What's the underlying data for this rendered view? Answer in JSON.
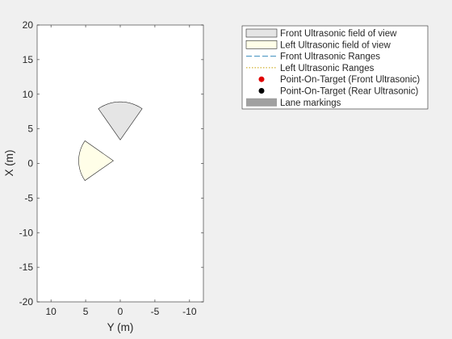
{
  "chart_data": {
    "type": "scatter",
    "title": "",
    "xlabel": "Y (m)",
    "ylabel": "X (m)",
    "xlim": [
      12,
      -12
    ],
    "ylim": [
      -20,
      20
    ],
    "x_reversed": true,
    "grid": false,
    "legend_placement": "outside-top-right",
    "x_ticks": [
      "10",
      "5",
      "0",
      "-5",
      "-10"
    ],
    "x_tick_values": [
      10,
      5,
      0,
      -5,
      -10
    ],
    "y_ticks": [
      "-20",
      "-15",
      "-10",
      "-5",
      "0",
      "5",
      "10",
      "15",
      "20"
    ],
    "y_tick_values": [
      -20,
      -15,
      -10,
      -5,
      0,
      5,
      10,
      15,
      20
    ],
    "fields_of_view": [
      {
        "name": "Front Ultrasonic field of view",
        "origin_x": 3.4,
        "origin_y": 0,
        "center_angle_deg": 0,
        "half_angle_deg": 35,
        "range": 5.5,
        "fill": "#e5e5e5"
      },
      {
        "name": "Left Ultrasonic field of view",
        "origin_x": 0.4,
        "origin_y": 1.0,
        "center_angle_deg": 90,
        "half_angle_deg": 35,
        "range": 5.0,
        "fill": "#fffee8"
      }
    ],
    "legend": [
      {
        "label": "Front Ultrasonic field of view",
        "kind": "patch",
        "color": "#e5e5e5"
      },
      {
        "label": "Left Ultrasonic field of view",
        "kind": "patch",
        "color": "#fffee8"
      },
      {
        "label": "Front Ultrasonic Ranges",
        "kind": "dashed-line",
        "color": "#3a8dbf"
      },
      {
        "label": "Left Ultrasonic Ranges",
        "kind": "dotted-line",
        "color": "#c8a000"
      },
      {
        "label": "Point-On-Target (Front Ultrasonic)",
        "kind": "marker",
        "color": "#e00000"
      },
      {
        "label": "Point-On-Target (Rear Ultrasonic)",
        "kind": "marker",
        "color": "#000000"
      },
      {
        "label": "Lane markings",
        "kind": "patch-solid",
        "color": "#a0a0a0"
      }
    ]
  }
}
